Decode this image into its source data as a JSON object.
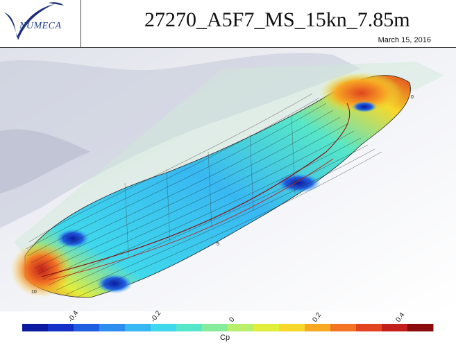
{
  "header": {
    "logo_text": "NUMECA",
    "title": "27270_A5F7_MS_15kn_7.85m",
    "date": "March 15, 2016"
  },
  "hull": {
    "station_labels": [
      "0",
      "5",
      "10"
    ]
  },
  "colorbar": {
    "label": "Cp",
    "ticks": [
      "-0.4",
      "-0.2",
      "0",
      "0.2",
      "0.4"
    ],
    "colors": [
      "#0b1a9e",
      "#1430c8",
      "#1f5ee0",
      "#2e8ef0",
      "#38b8f2",
      "#3fd8ec",
      "#56e6c9",
      "#86ec9c",
      "#b9ef6a",
      "#e2ee3c",
      "#f7d82a",
      "#f8a924",
      "#f27424",
      "#e1441f",
      "#c21f1a",
      "#8a0c0c"
    ]
  }
}
